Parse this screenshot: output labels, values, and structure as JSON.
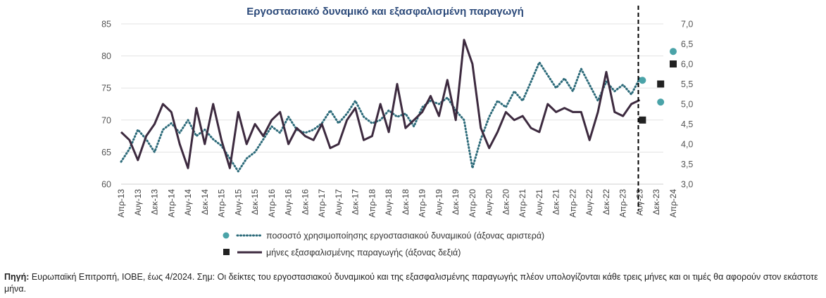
{
  "chart_data": {
    "type": "line",
    "title": "Εργοστασιακό δυναμικό και εξασφαλισμένη παραγωγή",
    "ylim_left": [
      60,
      85
    ],
    "yticks_left": [
      "60",
      "65",
      "70",
      "75",
      "80",
      "85"
    ],
    "ylim_right": [
      3.0,
      7.0
    ],
    "yticks_right": [
      "3,0",
      "3,5",
      "4,0",
      "4,5",
      "5,0",
      "5,5",
      "6,0",
      "6,5",
      "7,0"
    ],
    "x_tick_labels": [
      "Απρ-13",
      "Αυγ-13",
      "Δεκ-13",
      "Απρ-14",
      "Αυγ-14",
      "Δεκ-14",
      "Απρ-15",
      "Αυγ-15",
      "Δεκ-15",
      "Απρ-16",
      "Αυγ-16",
      "Δεκ-16",
      "Απρ-17",
      "Αυγ-17",
      "Δεκ-17",
      "Απρ-18",
      "Αυγ-18",
      "Δεκ-18",
      "Απρ-19",
      "Αυγ-19",
      "Δεκ-19",
      "Απρ-20",
      "Αυγ-20",
      "Δεκ-20",
      "Απρ-21",
      "Αυγ-21",
      "Δεκ-21",
      "Απρ-22",
      "Αυγ-22",
      "Δεκ-22",
      "Απρ-23",
      "Αυγ-23",
      "Δεκ-23",
      "Απρ-24"
    ],
    "series": [
      {
        "name": "ποσοστό χρησιμοποίησης εργοστασιακού δυναμικού  (άξονας αριστερά)",
        "axis": "left",
        "style": "dotted",
        "color": "#2d6b7a",
        "x": [
          "Απρ-13",
          "Ιουν-13",
          "Αυγ-13",
          "Οκτ-13",
          "Δεκ-13",
          "Φεβ-14",
          "Απρ-14",
          "Ιουν-14",
          "Αυγ-14",
          "Οκτ-14",
          "Δεκ-14",
          "Φεβ-15",
          "Απρ-15",
          "Ιουν-15",
          "Αυγ-15",
          "Οκτ-15",
          "Δεκ-15",
          "Φεβ-16",
          "Απρ-16",
          "Ιουν-16",
          "Αυγ-16",
          "Οκτ-16",
          "Δεκ-16",
          "Φεβ-17",
          "Απρ-17",
          "Ιουν-17",
          "Αυγ-17",
          "Οκτ-17",
          "Δεκ-17",
          "Φεβ-18",
          "Απρ-18",
          "Ιουν-18",
          "Αυγ-18",
          "Οκτ-18",
          "Δεκ-18",
          "Φεβ-19",
          "Απρ-19",
          "Ιουν-19",
          "Αυγ-19",
          "Οκτ-19",
          "Δεκ-19",
          "Φεβ-20",
          "Απρ-20",
          "Ιουν-20",
          "Αυγ-20",
          "Οκτ-20",
          "Δεκ-20",
          "Φεβ-21",
          "Απρ-21",
          "Ιουν-21",
          "Αυγ-21",
          "Οκτ-21",
          "Δεκ-21",
          "Φεβ-22",
          "Απρ-22",
          "Ιουν-22",
          "Αυγ-22",
          "Οκτ-22",
          "Δεκ-22",
          "Φεβ-23",
          "Απρ-23",
          "Ιουν-23",
          "Αυγ-23"
        ],
        "values": [
          63.5,
          65.5,
          68.5,
          67.0,
          65.0,
          68.5,
          69.5,
          68.0,
          70.0,
          67.5,
          68.5,
          67.0,
          66.0,
          64.0,
          62.0,
          64.0,
          65.0,
          67.0,
          69.0,
          68.0,
          70.5,
          68.5,
          68.0,
          68.5,
          69.5,
          71.5,
          69.5,
          71.0,
          73.0,
          70.5,
          69.5,
          70.0,
          71.5,
          70.5,
          71.0,
          69.0,
          72.0,
          73.0,
          72.5,
          73.5,
          71.5,
          70.0,
          62.5,
          67.0,
          70.5,
          73.0,
          72.0,
          74.5,
          73.0,
          76.0,
          79.0,
          77.0,
          75.0,
          76.5,
          74.5,
          78.0,
          75.5,
          73.0,
          76.0,
          74.5,
          75.5,
          74.0,
          76.5
        ]
      },
      {
        "name": "μήνες εξασφαλισμένης παραγωγής (άξονας δεξιά)",
        "axis": "right",
        "style": "solid",
        "color": "#3d2a3f",
        "x": [
          "Απρ-13",
          "Ιουν-13",
          "Αυγ-13",
          "Οκτ-13",
          "Δεκ-13",
          "Φεβ-14",
          "Απρ-14",
          "Ιουν-14",
          "Αυγ-14",
          "Οκτ-14",
          "Δεκ-14",
          "Φεβ-15",
          "Απρ-15",
          "Ιουν-15",
          "Αυγ-15",
          "Οκτ-15",
          "Δεκ-15",
          "Φεβ-16",
          "Απρ-16",
          "Ιουν-16",
          "Αυγ-16",
          "Οκτ-16",
          "Δεκ-16",
          "Φεβ-17",
          "Απρ-17",
          "Ιουν-17",
          "Αυγ-17",
          "Οκτ-17",
          "Δεκ-17",
          "Φεβ-18",
          "Απρ-18",
          "Ιουν-18",
          "Αυγ-18",
          "Οκτ-18",
          "Δεκ-18",
          "Φεβ-19",
          "Απρ-19",
          "Ιουν-19",
          "Αυγ-19",
          "Οκτ-19",
          "Δεκ-19",
          "Φεβ-20",
          "Απρ-20",
          "Ιουν-20",
          "Αυγ-20",
          "Οκτ-20",
          "Δεκ-20",
          "Φεβ-21",
          "Απρ-21",
          "Ιουν-21",
          "Αυγ-21",
          "Οκτ-21",
          "Δεκ-21",
          "Φεβ-22",
          "Απρ-22",
          "Ιουν-22",
          "Αυγ-22",
          "Οκτ-22",
          "Δεκ-22",
          "Φεβ-23",
          "Απρ-23",
          "Ιουν-23",
          "Αυγ-23"
        ],
        "values": [
          4.3,
          4.1,
          3.6,
          4.2,
          4.5,
          5.0,
          4.8,
          4.0,
          3.4,
          4.9,
          4.0,
          5.0,
          4.1,
          3.4,
          4.8,
          4.0,
          4.5,
          4.2,
          4.6,
          4.8,
          4.0,
          4.4,
          4.2,
          4.1,
          4.5,
          3.9,
          4.0,
          4.6,
          4.9,
          4.1,
          4.2,
          5.0,
          4.3,
          5.5,
          4.4,
          4.6,
          4.8,
          5.2,
          4.7,
          5.6,
          4.6,
          6.6,
          6.0,
          4.4,
          3.9,
          4.3,
          4.8,
          4.6,
          4.7,
          4.4,
          4.3,
          5.0,
          4.8,
          4.9,
          4.8,
          4.8,
          4.1,
          4.8,
          5.8,
          4.8,
          4.7,
          5.0,
          5.1
        ]
      }
    ],
    "forecast_points": [
      {
        "series": "ποσοστό χρησιμοποίησης εργοστασιακού δυναμικού  (άξονας αριστερά)",
        "label": "Οκτ-23",
        "value": 76.2,
        "marker": "circle",
        "color": "#4aa3a8"
      },
      {
        "series": "ποσοστό χρησιμοποίησης εργοστασιακού δυναμικού  (άξονας αριστερά)",
        "label": "Ιαν-24",
        "value": 72.8,
        "marker": "circle",
        "color": "#4aa3a8"
      },
      {
        "series": "ποσοστό χρησιμοποίησης εργοστασιακού δυναμικού  (άξονας αριστερά)",
        "label": "Απρ-24",
        "value": 80.7,
        "marker": "circle",
        "color": "#4aa3a8"
      },
      {
        "series": "μήνες εξασφαλισμένης παραγωγής (άξονας δεξιά)",
        "label": "Οκτ-23",
        "value": 4.6,
        "marker": "square",
        "color": "#222222"
      },
      {
        "series": "μήνες εξασφαλισμένης παραγωγής (άξονας δεξιά)",
        "label": "Ιαν-24",
        "value": 5.5,
        "marker": "square",
        "color": "#222222"
      },
      {
        "series": "μήνες εξασφαλισμένης παραγωγής (άξονας δεξιά)",
        "label": "Απρ-24",
        "value": 6.0,
        "marker": "square",
        "color": "#222222"
      }
    ],
    "vertical_marker": {
      "at": "Αυγ-23",
      "style": "dashed"
    },
    "grid": true,
    "legend_position": "bottom-center"
  },
  "footnote": {
    "label": "Πηγή:",
    "text": " Ευρωπαϊκή Επιτροπή, ΙΟΒΕ, έως 4/2024. Σημ: Οι δείκτες του εργοστασιακού δυναμικού και της εξασφαλισμένης παραγωγής πλέον υπολογίζονται κάθε τρεις μήνες και οι τιμές θα αφορούν στον εκάστοτε μήνα."
  }
}
